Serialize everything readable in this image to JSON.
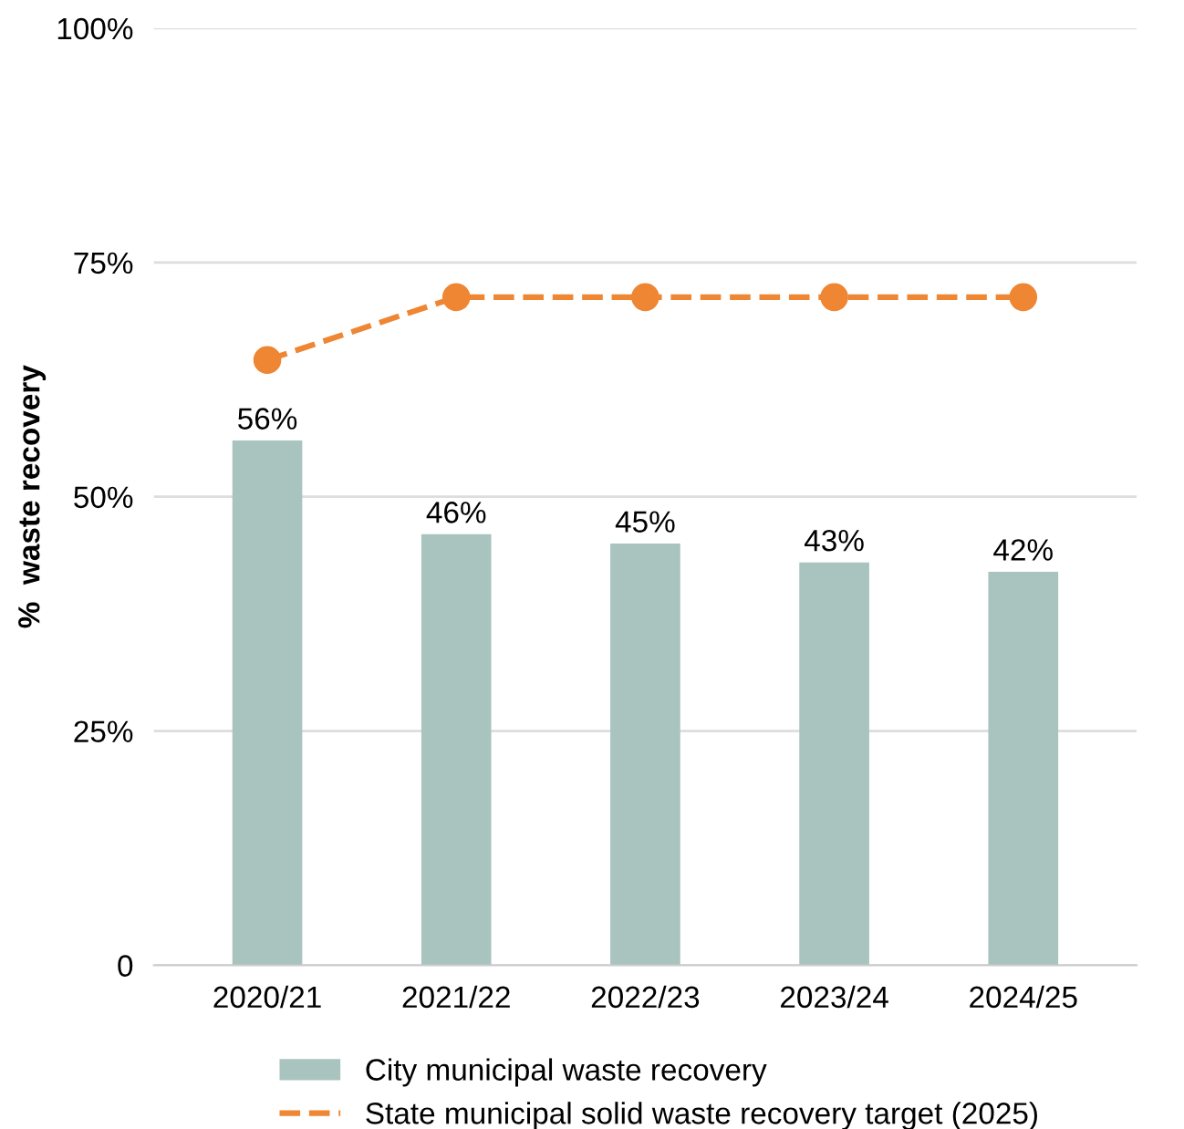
{
  "chart_data": {
    "type": "bar",
    "ylabel": "%  waste recovery",
    "categories": [
      "2020/21",
      "2021/22",
      "2022/23",
      "2023/24",
      "2024/25"
    ],
    "series": [
      {
        "name": "City municipal waste recovery",
        "color": "#a9c4bf",
        "values": [
          56,
          46,
          45,
          43,
          42
        ],
        "value_labels": [
          "56%",
          "46%",
          "45%",
          "43%",
          "42%"
        ]
      },
      {
        "name": "State municipal solid waste recovery target (2025)",
        "type": "line",
        "color": "#ee8633",
        "values": [
          64.6,
          71.3,
          71.3,
          71.3,
          71.3
        ],
        "marker": "circle",
        "line_style": "dashed"
      }
    ],
    "ylim": [
      0,
      100
    ],
    "yticks": [
      {
        "value": 0,
        "label": "0"
      },
      {
        "value": 25,
        "label": "25%"
      },
      {
        "value": 50,
        "label": "50%"
      },
      {
        "value": 75,
        "label": "75%"
      },
      {
        "value": 100,
        "label": "100%"
      }
    ],
    "grid": "y",
    "legend": "bottom"
  }
}
